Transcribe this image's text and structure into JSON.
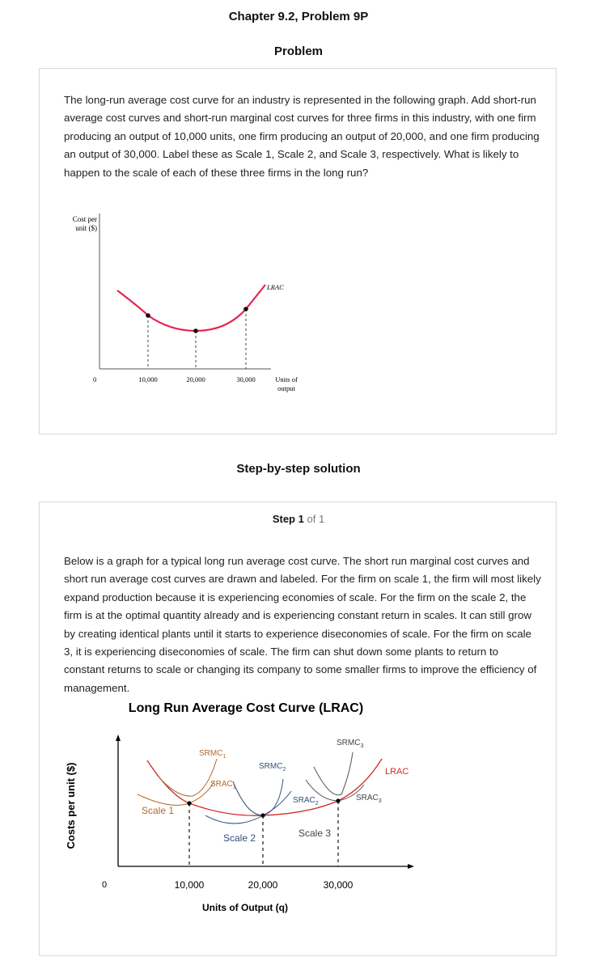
{
  "header": {
    "chapter_title": "Chapter 9.2, Problem 9P"
  },
  "problem": {
    "section_title": "Problem",
    "text": "The long-run average cost curve for an industry is represented in the following graph. Add short-run average cost curves and short-run marginal cost curves for three firms in this industry, with one firm producing an output of 10,000 units, one firm producing an output of 20,000, and one firm producing an output of 30,000. Label these as Scale 1, Scale 2, and Scale 3, respectively. What is likely to happen to the scale of each of these three firms in the long run?",
    "graph": {
      "y_label_line1": "Cost per",
      "y_label_line2": "unit ($)",
      "origin": "0",
      "x_ticks": [
        "10,000",
        "20,000",
        "30,000"
      ],
      "x_label_line1": "Units of",
      "x_label_line2": "output",
      "curve_label": "LRAC",
      "curve_color": "#e8234f"
    }
  },
  "solution": {
    "section_title": "Step-by-step solution",
    "step_word": "Step",
    "step_num": "1",
    "step_of": "of 1",
    "text": "Below is a graph for a typical long run average cost curve. The short run marginal cost curves and short run average cost curves are drawn and labeled. For the firm on scale 1, the firm will most likely expand production because it is experiencing economies of scale. For the firm on the scale 2, the firm is at the optimal quantity already and is experiencing constant return in scales. It can still grow by creating identical plants until it starts to experience diseconomies of scale. For the firm on scale 3, it is experiencing diseconomies of scale. The firm can shut down some plants to return to constant returns to scale or changing its company to some smaller firms to improve the efficiency of management.",
    "graph": {
      "title": "Long Run Average Cost Curve (LRAC)",
      "y_label": "Costs per unit ($)",
      "x_label": "Units of Output (q)",
      "origin": "0",
      "x_ticks": [
        "10,000",
        "20,000",
        "30,000"
      ],
      "lrac_label": "LRAC",
      "scale1": "Scale 1",
      "scale2": "Scale 2",
      "scale3": "Scale 3",
      "srmc1_main": "SRMC",
      "srmc1_sub": "1",
      "srac1_main": "SRAC",
      "srac1_sub": "1",
      "srmc2_main": "SRMC",
      "srmc2_sub": "2",
      "srac2_main": "SRAC",
      "srac2_sub": "2",
      "srmc3_main": "SRMC",
      "srmc3_sub": "3",
      "srac3_main": "SRAC",
      "srac3_sub": "3",
      "colors": {
        "lrac": "#d42a2a",
        "scale1": "#b36a2a",
        "scale2": "#2f4f7a",
        "scale3": "#555555"
      }
    }
  }
}
